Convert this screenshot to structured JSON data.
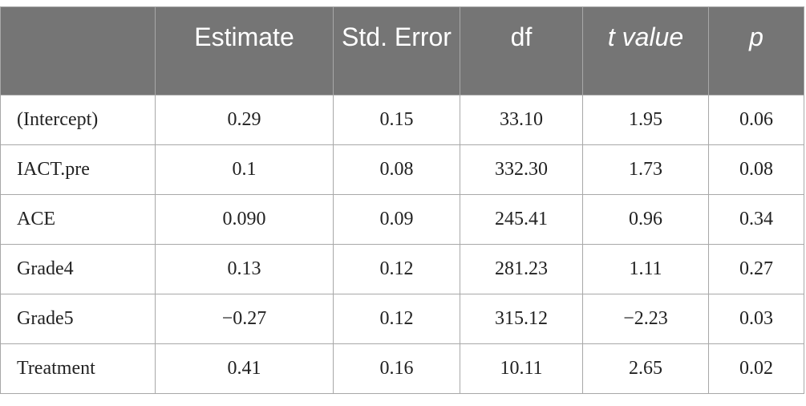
{
  "table": {
    "headers": [
      "",
      "Estimate",
      "Std. Error",
      "df",
      "t value",
      "p"
    ],
    "rows": [
      [
        "(Intercept)",
        "0.29",
        "0.15",
        "33.10",
        "1.95",
        "0.06"
      ],
      [
        "IACT.pre",
        "0.1",
        "0.08",
        "332.30",
        "1.73",
        "0.08"
      ],
      [
        "ACE",
        "0.090",
        "0.09",
        "245.41",
        "0.96",
        "0.34"
      ],
      [
        "Grade4",
        "0.13",
        "0.12",
        "281.23",
        "1.11",
        "0.27"
      ],
      [
        "Grade5",
        "−0.27",
        "0.12",
        "315.12",
        "−2.23",
        "0.03"
      ],
      [
        "Treatment",
        "0.41",
        "0.16",
        "10.11",
        "2.65",
        "0.02"
      ]
    ]
  },
  "colors": {
    "header_background": "#757575",
    "header_text": "#ffffff",
    "border": "#a8a8a8",
    "body_text": "#222222"
  }
}
